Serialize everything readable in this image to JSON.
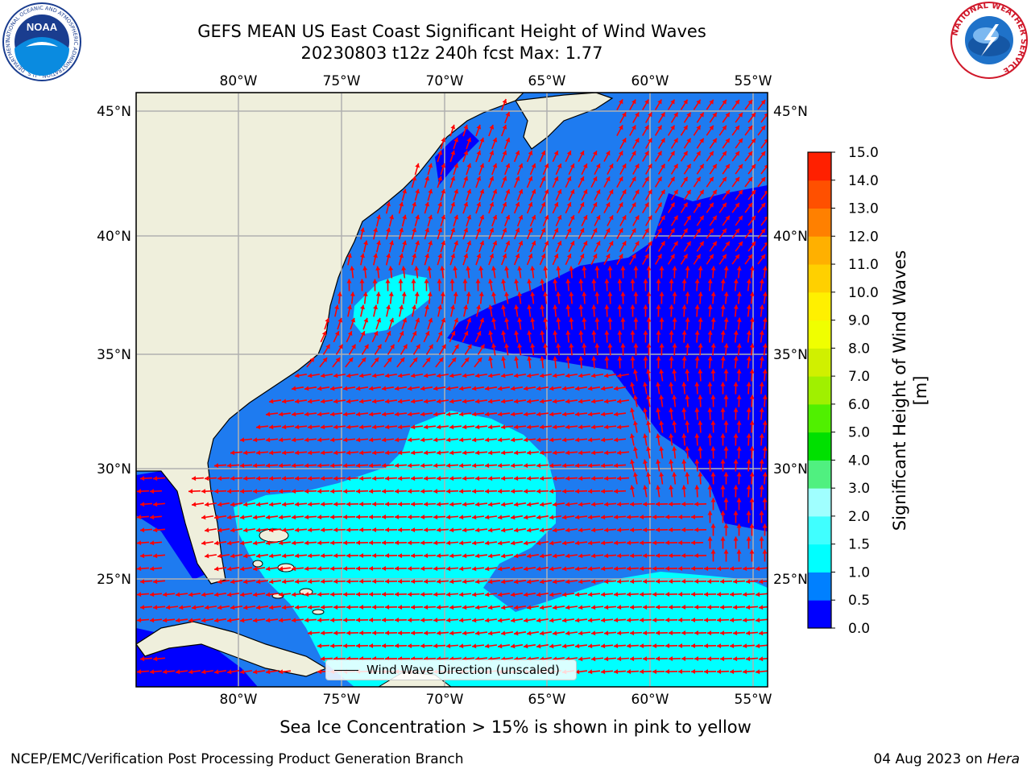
{
  "title": {
    "line1": "GEFS MEAN US East Coast Significant Height of Wind Waves",
    "line2": "20230803 t12z 240h fcst   Max: 1.77"
  },
  "logos": {
    "noaa_text": "NOAA",
    "noaa_ring": "NATIONAL OCEANIC AND ATMOSPHERIC ADMINISTRATION · U.S. DEPARTMENT OF COMMERCE",
    "nws_ring": "NATIONAL WEATHER SERVICE"
  },
  "map": {
    "lon_labels": [
      "80°W",
      "75°W",
      "70°W",
      "65°W",
      "60°W",
      "55°W"
    ],
    "lat_labels": [
      "45°N",
      "40°N",
      "35°N",
      "30°N",
      "25°N"
    ],
    "legend_label": "Wind Wave Direction (unscaled)"
  },
  "colorbar": {
    "label": "Significant Height of Wind Waves [m]",
    "ticks": [
      "0.0",
      "0.5",
      "1.0",
      "1.5",
      "2.0",
      "3.0",
      "4.0",
      "5.0",
      "6.0",
      "7.0",
      "8.0",
      "9.0",
      "10.0",
      "11.0",
      "12.0",
      "13.0",
      "14.0",
      "15.0"
    ],
    "colors": [
      "#0000ff",
      "#0080ff",
      "#00ffff",
      "#40ffff",
      "#a0ffff",
      "#50f080",
      "#00e000",
      "#50f000",
      "#a0f000",
      "#d0f000",
      "#f0ff00",
      "#fff000",
      "#ffd000",
      "#ffb000",
      "#ff8000",
      "#ff5000",
      "#ff2000"
    ]
  },
  "colors": {
    "land": "#efefdc",
    "ocean_low": "#0000ff",
    "ocean_mid": "#1e7bf0",
    "ocean_high": "#00ffff",
    "arrow": "#ff0000",
    "grid": "#b0b0b0"
  },
  "ice_note": "Sea Ice Concentration > 15% is shown in pink to yellow",
  "footer": {
    "left": "NCEP/EMC/Verification Post Processing Product Generation Branch",
    "date": "04 Aug 2023 on",
    "machine": "Hera"
  }
}
